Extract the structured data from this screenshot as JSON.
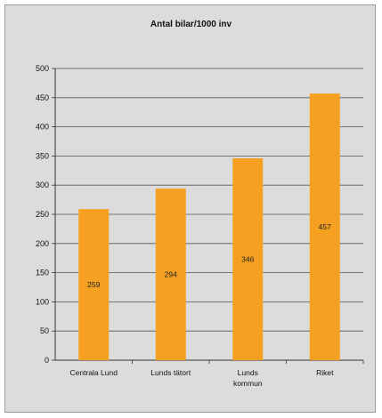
{
  "chart_data": {
    "type": "bar",
    "title": "Antal bilar/1000 inv",
    "categories": [
      "Centrala Lund",
      "Lunds tätort",
      "Lunds kommun",
      "Riket"
    ],
    "category_lines": [
      [
        "Centrala Lund"
      ],
      [
        "Lunds tätort"
      ],
      [
        "Lunds",
        "kommun"
      ],
      [
        "Riket"
      ]
    ],
    "values": [
      259,
      294,
      346,
      457
    ],
    "data_labels": [
      "259",
      "294",
      "346",
      "457"
    ],
    "ylim": [
      0,
      500
    ],
    "yticks": [
      0,
      50,
      100,
      150,
      200,
      250,
      300,
      350,
      400,
      450,
      500
    ],
    "grid": true,
    "bar_color": "#f5a020",
    "background_color": "#dcdcdc"
  }
}
